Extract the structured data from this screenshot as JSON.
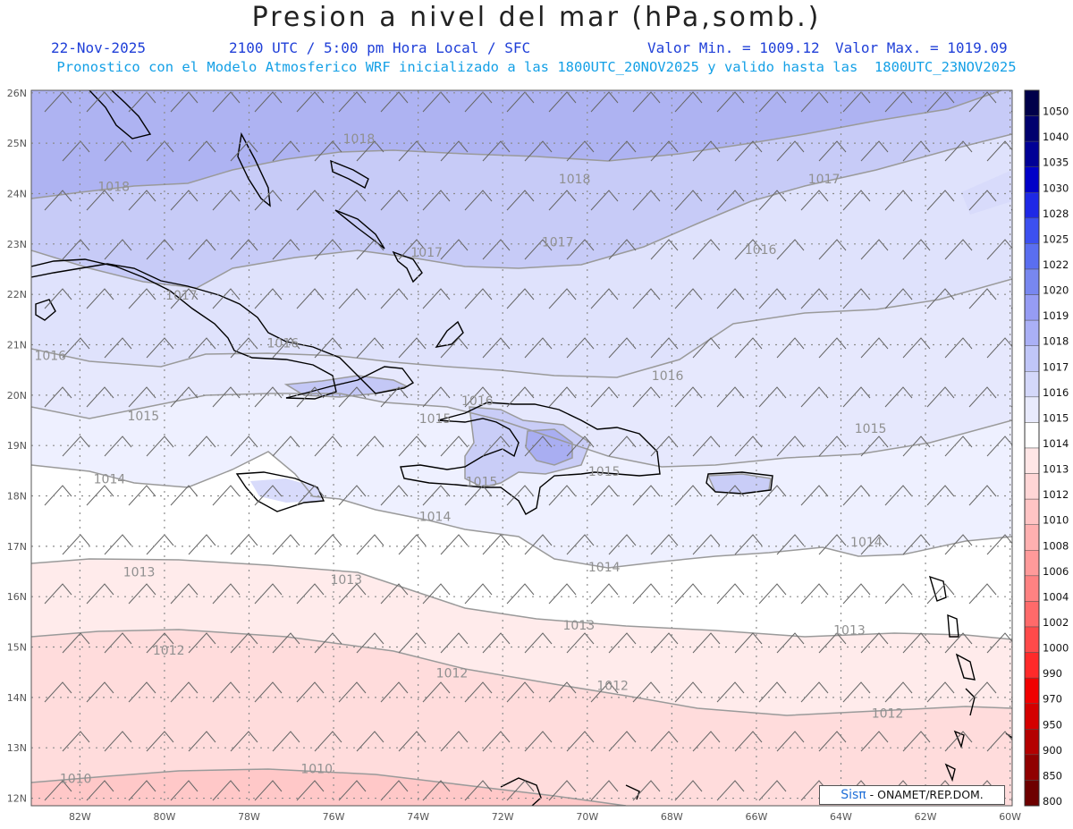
{
  "header": {
    "title": "Presion a nivel del mar (hPa,somb.)",
    "date": "22-Nov-2025",
    "time": "2100 UTC / 5:00 pm Hora Local / SFC",
    "min": "Valor Min. = 1009.12",
    "max": "Valor Max. = 1019.09",
    "model": "Pronostico con el Modelo Atmosferico WRF inicializado a las 1800UTC_20NOV2025 y valido hasta las  1800UTC_23NOV2025"
  },
  "axes": {
    "lon_labels": [
      "82W",
      "80W",
      "78W",
      "76W",
      "74W",
      "72W",
      "70W",
      "68W",
      "66W",
      "64W",
      "62W",
      "60W"
    ],
    "lat_labels": [
      "26N",
      "25N",
      "24N",
      "23N",
      "22N",
      "21N",
      "20N",
      "19N",
      "18N",
      "17N",
      "16N",
      "15N",
      "14N",
      "13N",
      "12N"
    ]
  },
  "colorbar": {
    "levels": [
      "1050",
      "1040",
      "1035",
      "1030",
      "1028",
      "1025",
      "1022",
      "1020",
      "1019",
      "1018",
      "1017",
      "1016",
      "1015",
      "1014",
      "1013",
      "1012",
      "1010",
      "1008",
      "1006",
      "1004",
      "1002",
      "1000",
      "990",
      "970",
      "950",
      "900",
      "850",
      "800"
    ],
    "colors": [
      "#00004a",
      "#00006e",
      "#000096",
      "#0000c8",
      "#1e28e6",
      "#3c50f0",
      "#5a6ef0",
      "#7887f0",
      "#969cf4",
      "#aab0f6",
      "#c0c6f8",
      "#d4d8fa",
      "#e8eafc",
      "#ffffff",
      "#ffe6e6",
      "#ffd6d6",
      "#ffc4c4",
      "#ffb0b0",
      "#ff9a9a",
      "#ff8282",
      "#ff6a6a",
      "#ff4a4a",
      "#ff2a2a",
      "#f00000",
      "#d40000",
      "#b40000",
      "#900000",
      "#6e0000"
    ]
  },
  "contour_labels": [
    {
      "text": "1018",
      "lon": -81.2,
      "lat": 24.05
    },
    {
      "text": "1018",
      "lon": -75.4,
      "lat": 25.0
    },
    {
      "text": "1018",
      "lon": -70.3,
      "lat": 24.2
    },
    {
      "text": "1017",
      "lon": -64.4,
      "lat": 24.2
    },
    {
      "text": "1017",
      "lon": -73.8,
      "lat": 22.75
    },
    {
      "text": "1017",
      "lon": -70.7,
      "lat": 22.95
    },
    {
      "text": "1017",
      "lon": -79.6,
      "lat": 21.9
    },
    {
      "text": "1016",
      "lon": -65.9,
      "lat": 22.8
    },
    {
      "text": "1016",
      "lon": -82.7,
      "lat": 20.7
    },
    {
      "text": "1016",
      "lon": -77.2,
      "lat": 20.95
    },
    {
      "text": "1016",
      "lon": -68.1,
      "lat": 20.3
    },
    {
      "text": "1016",
      "lon": -72.6,
      "lat": 19.8
    },
    {
      "text": "1015",
      "lon": -80.5,
      "lat": 19.5
    },
    {
      "text": "1015",
      "lon": -73.6,
      "lat": 19.45
    },
    {
      "text": "1015",
      "lon": -63.3,
      "lat": 19.25
    },
    {
      "text": "1015",
      "lon": -72.5,
      "lat": 18.2
    },
    {
      "text": "1015",
      "lon": -69.6,
      "lat": 18.4
    },
    {
      "text": "1014",
      "lon": -81.3,
      "lat": 18.25
    },
    {
      "text": "1014",
      "lon": -73.6,
      "lat": 17.5
    },
    {
      "text": "1014",
      "lon": -69.6,
      "lat": 16.5
    },
    {
      "text": "1014",
      "lon": -63.4,
      "lat": 17.0
    },
    {
      "text": "1013",
      "lon": -80.6,
      "lat": 16.4
    },
    {
      "text": "1013",
      "lon": -75.7,
      "lat": 16.25
    },
    {
      "text": "1013",
      "lon": -70.2,
      "lat": 15.35
    },
    {
      "text": "1013",
      "lon": -63.8,
      "lat": 15.25
    },
    {
      "text": "1012",
      "lon": -79.9,
      "lat": 14.85
    },
    {
      "text": "1012",
      "lon": -73.2,
      "lat": 14.4
    },
    {
      "text": "1012",
      "lon": -69.4,
      "lat": 14.15
    },
    {
      "text": "1012",
      "lon": -62.9,
      "lat": 13.6
    },
    {
      "text": "1010",
      "lon": -82.1,
      "lat": 12.3
    },
    {
      "text": "1010",
      "lon": -76.4,
      "lat": 12.5
    }
  ],
  "footer": {
    "credit_brand": "Sisπ",
    "credit_text": " - ONAMET/REP.DOM."
  }
}
